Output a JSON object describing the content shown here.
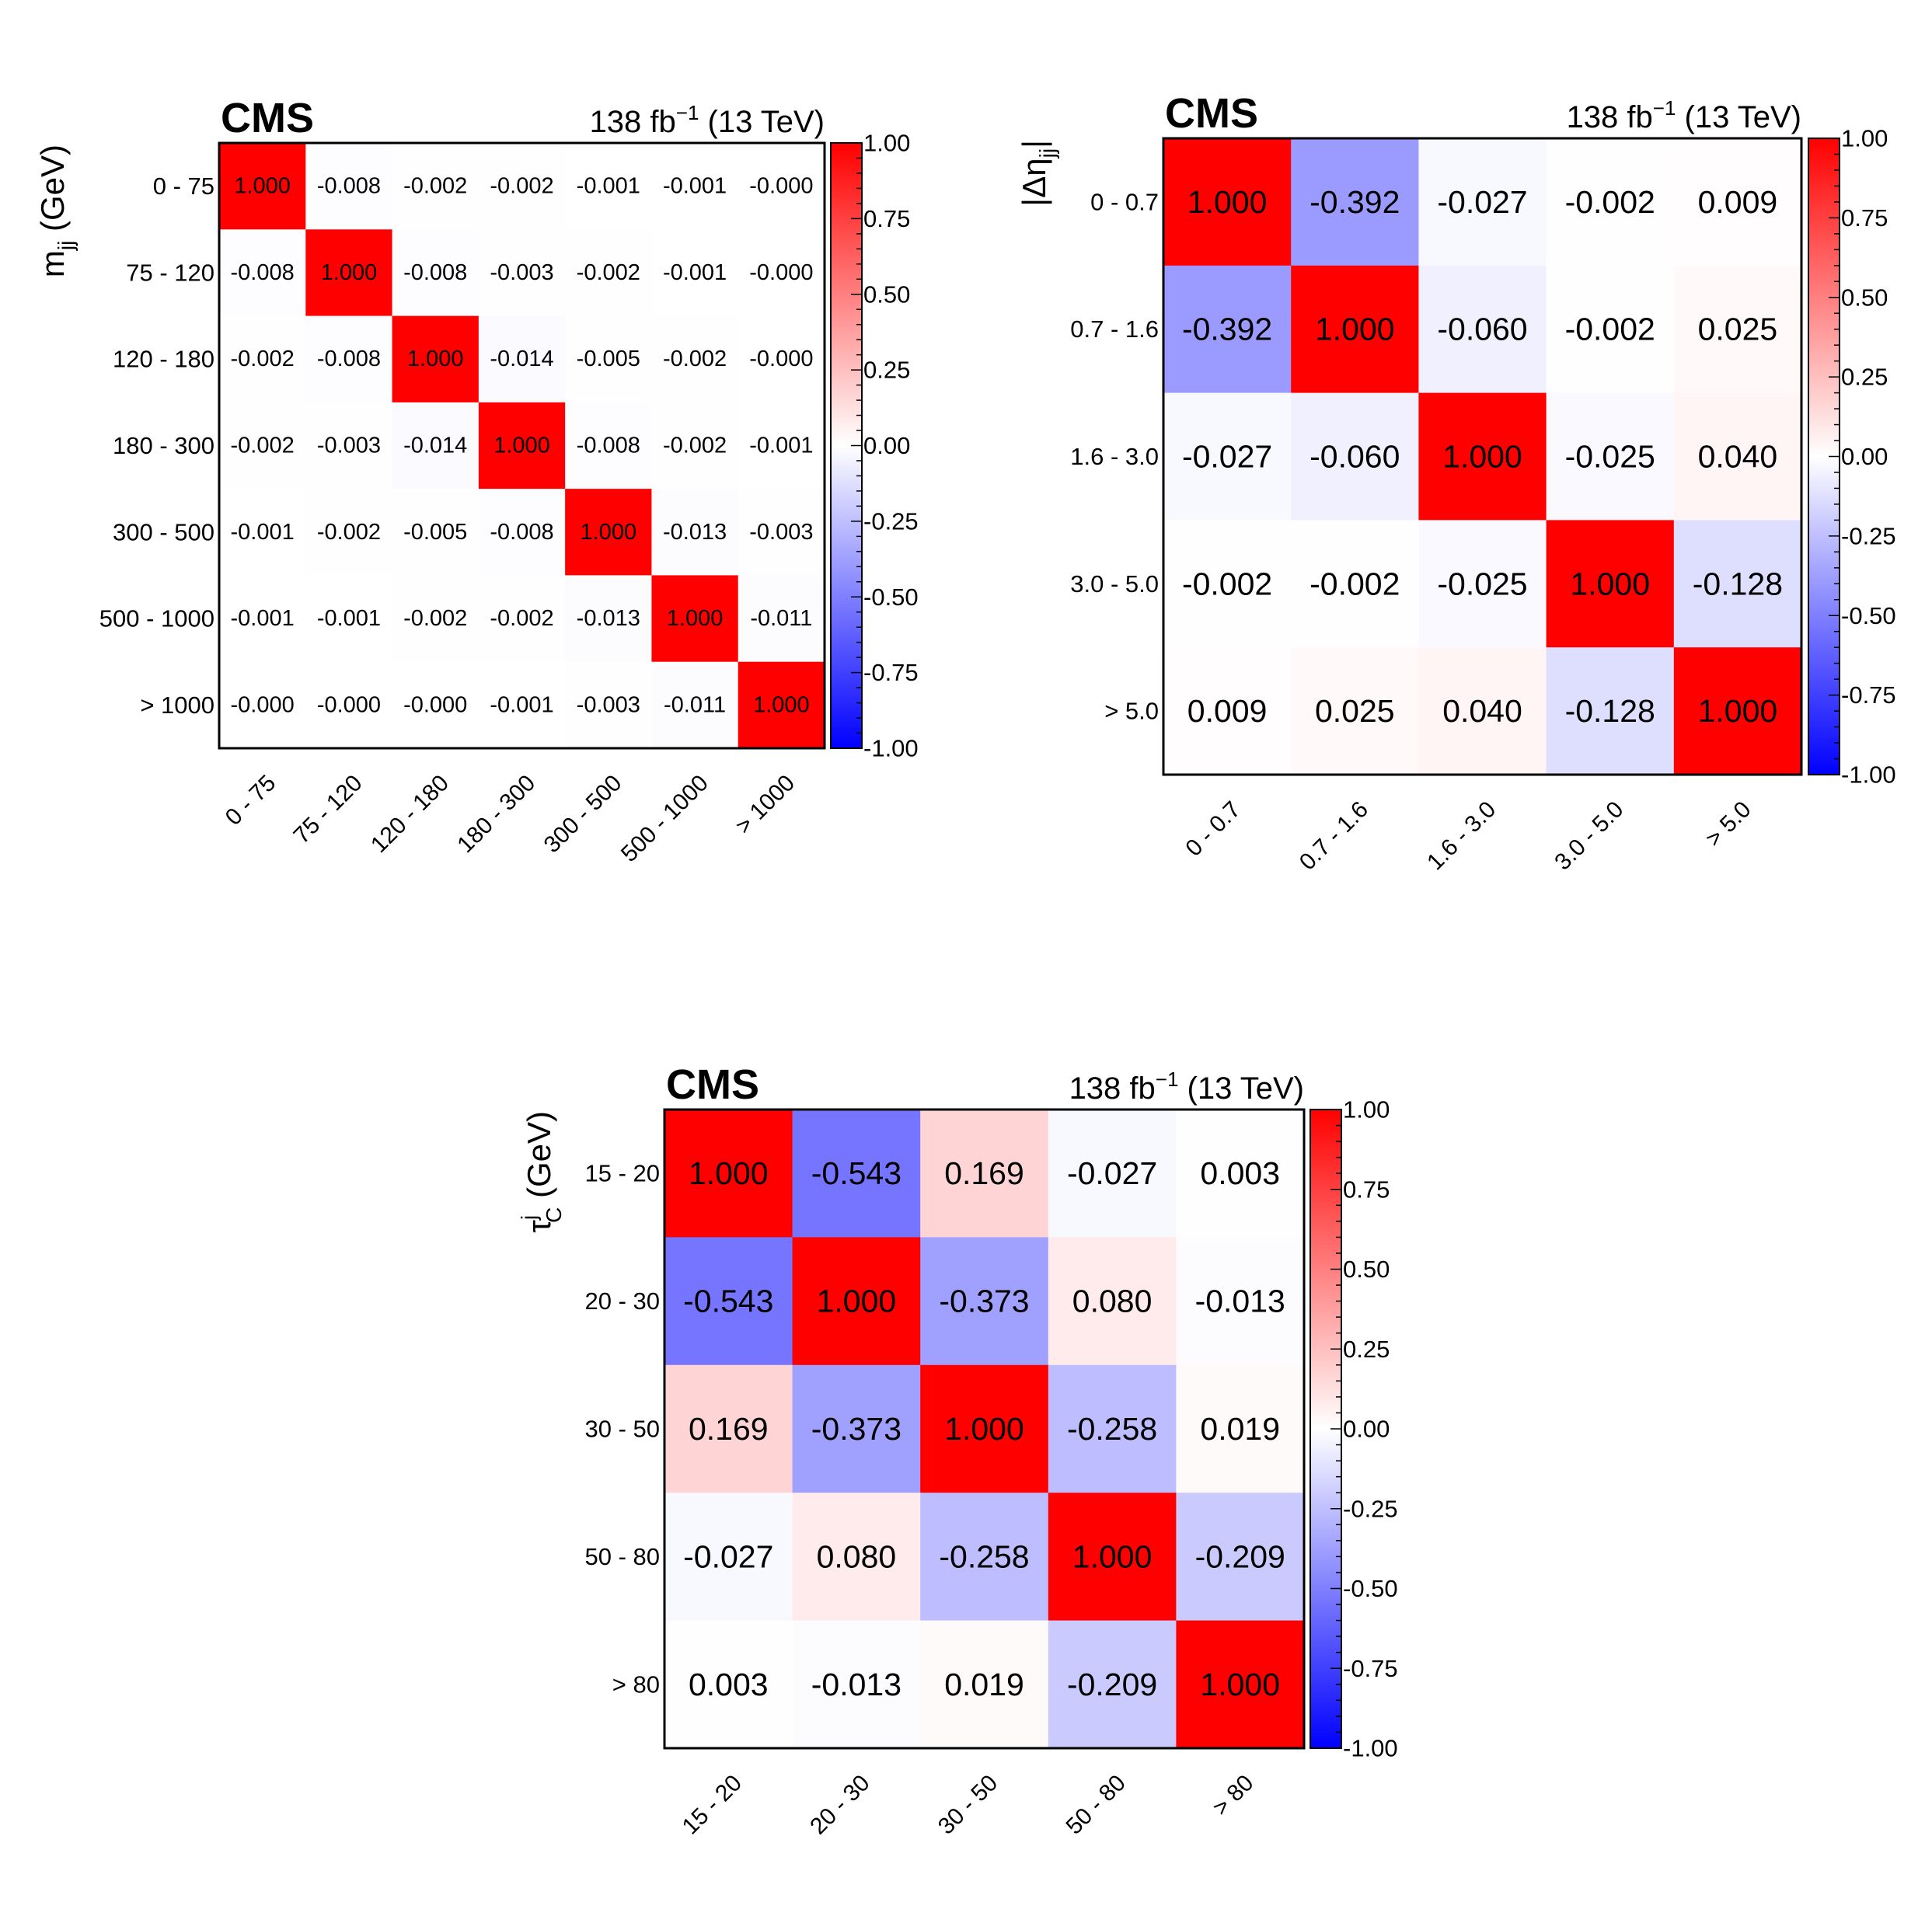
{
  "colors": {
    "negative": "#0000ff",
    "zero": "#ffffff",
    "positive": "#ff0000",
    "frame": "#000000"
  },
  "chart_data": [
    {
      "type": "heatmap",
      "experiment": "CMS",
      "lumi": "138 fb",
      "lumi_exp": "−1",
      "energy": "(13 TeV)",
      "ylabel_main": "m",
      "ylabel_sub": "jj",
      "ylabel_units": " (GeV)",
      "bins": [
        "0 - 75",
        "75 - 120",
        "120 - 180",
        "180 - 300",
        "300 - 500",
        "500 - 1000",
        "> 1000"
      ],
      "zlim": [
        -1.0,
        1.0
      ],
      "colorbar_ticks": [
        "1.00",
        "0.75",
        "0.50",
        "0.25",
        "0.00",
        "-0.25",
        "-0.50",
        "-0.75",
        "-1.00"
      ],
      "value_labels": [
        [
          "1.000",
          "-0.008",
          "-0.002",
          "-0.002",
          "-0.001",
          "-0.001",
          "-0.000"
        ],
        [
          "-0.008",
          "1.000",
          "-0.008",
          "-0.003",
          "-0.002",
          "-0.001",
          "-0.000"
        ],
        [
          "-0.002",
          "-0.008",
          "1.000",
          "-0.014",
          "-0.005",
          "-0.002",
          "-0.000"
        ],
        [
          "-0.002",
          "-0.003",
          "-0.014",
          "1.000",
          "-0.008",
          "-0.002",
          "-0.001"
        ],
        [
          "-0.001",
          "-0.002",
          "-0.005",
          "-0.008",
          "1.000",
          "-0.013",
          "-0.003"
        ],
        [
          "-0.001",
          "-0.001",
          "-0.002",
          "-0.002",
          "-0.013",
          "1.000",
          "-0.011"
        ],
        [
          "-0.000",
          "-0.000",
          "-0.000",
          "-0.001",
          "-0.003",
          "-0.011",
          "1.000"
        ]
      ]
    },
    {
      "type": "heatmap",
      "experiment": "CMS",
      "lumi": "138 fb",
      "lumi_exp": "−1",
      "energy": "(13 TeV)",
      "ylabel_main": "|Δη",
      "ylabel_sub": "jj",
      "ylabel_units": "|",
      "bins": [
        "0 - 0.7",
        "0.7 - 1.6",
        "1.6 - 3.0",
        "3.0 - 5.0",
        "> 5.0"
      ],
      "zlim": [
        -1.0,
        1.0
      ],
      "colorbar_ticks": [
        "1.00",
        "0.75",
        "0.50",
        "0.25",
        "0.00",
        "-0.25",
        "-0.50",
        "-0.75",
        "-1.00"
      ],
      "value_labels": [
        [
          "1.000",
          "-0.392",
          "-0.027",
          "-0.002",
          "0.009"
        ],
        [
          "-0.392",
          "1.000",
          "-0.060",
          "-0.002",
          "0.025"
        ],
        [
          "-0.027",
          "-0.060",
          "1.000",
          "-0.025",
          "0.040"
        ],
        [
          "-0.002",
          "-0.002",
          "-0.025",
          "1.000",
          "-0.128"
        ],
        [
          "0.009",
          "0.025",
          "0.040",
          "-0.128",
          "1.000"
        ]
      ]
    },
    {
      "type": "heatmap",
      "experiment": "CMS",
      "lumi": "138 fb",
      "lumi_exp": "−1",
      "energy": "(13 TeV)",
      "ylabel_main": "τ",
      "ylabel_sub": "C",
      "ylabel_sup": "j",
      "ylabel_units": " (GeV)",
      "bins": [
        "15 - 20",
        "20 - 30",
        "30 - 50",
        "50 - 80",
        "> 80"
      ],
      "zlim": [
        -1.0,
        1.0
      ],
      "colorbar_ticks": [
        "1.00",
        "0.75",
        "0.50",
        "0.25",
        "0.00",
        "-0.25",
        "-0.50",
        "-0.75",
        "-1.00"
      ],
      "value_labels": [
        [
          "1.000",
          "-0.543",
          "0.169",
          "-0.027",
          "0.003"
        ],
        [
          "-0.543",
          "1.000",
          "-0.373",
          "0.080",
          "-0.013"
        ],
        [
          "0.169",
          "-0.373",
          "1.000",
          "-0.258",
          "0.019"
        ],
        [
          "-0.027",
          "0.080",
          "-0.258",
          "1.000",
          "-0.209"
        ],
        [
          "0.003",
          "-0.013",
          "0.019",
          "-0.209",
          "1.000"
        ]
      ]
    }
  ]
}
